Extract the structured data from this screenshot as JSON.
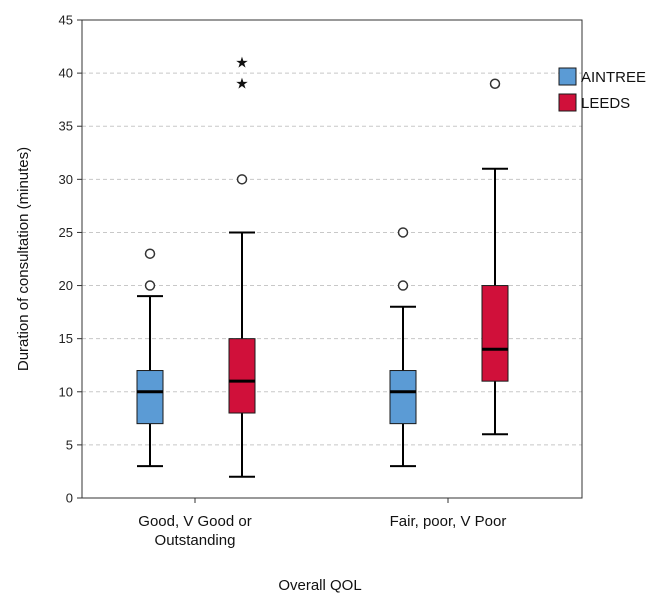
{
  "chart_data": {
    "type": "boxplot",
    "xlabel": "Overall QOL",
    "ylabel": "Duration of consultation (minutes)",
    "ylim": [
      0,
      45
    ],
    "yticks": [
      0,
      5,
      10,
      15,
      20,
      25,
      30,
      35,
      40,
      45
    ],
    "grid": true,
    "legend_position": "right",
    "categories": [
      [
        "Good, V Good or",
        "Outstanding"
      ],
      [
        "Fair, poor, V Poor"
      ]
    ],
    "series": [
      {
        "name": "AINTREE",
        "color": "#5b9bd5",
        "boxes": [
          {
            "category": 0,
            "min": 3,
            "q1": 7,
            "median": 10,
            "q3": 12,
            "max": 19,
            "outliers": [
              20,
              23
            ],
            "extremes": []
          },
          {
            "category": 1,
            "min": 3,
            "q1": 7,
            "median": 10,
            "q3": 12,
            "max": 18,
            "outliers": [
              20,
              25
            ],
            "extremes": []
          }
        ]
      },
      {
        "name": "LEEDS",
        "color": "#d0103a",
        "boxes": [
          {
            "category": 0,
            "min": 2,
            "q1": 8,
            "median": 11,
            "q3": 15,
            "max": 25,
            "outliers": [
              30
            ],
            "extremes": [
              39,
              41
            ]
          },
          {
            "category": 1,
            "min": 6,
            "q1": 11,
            "median": 14,
            "q3": 20,
            "max": 31,
            "outliers": [
              39
            ],
            "extremes": []
          }
        ]
      }
    ]
  }
}
